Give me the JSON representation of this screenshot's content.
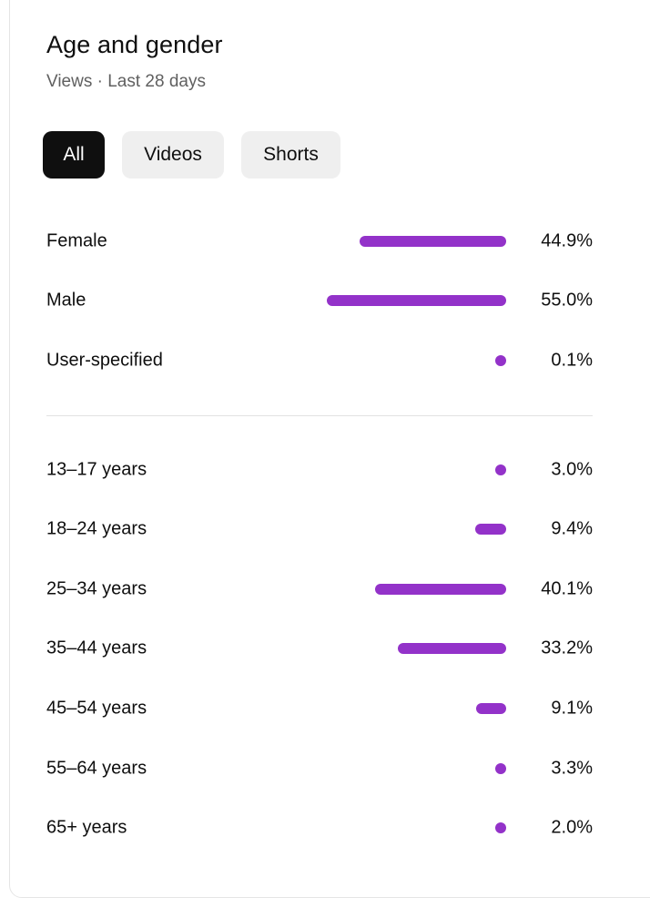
{
  "header": {
    "title": "Age and gender",
    "subtitle": "Views · Last 28 days"
  },
  "tabs": [
    {
      "label": "All",
      "active": true
    },
    {
      "label": "Videos",
      "active": false
    },
    {
      "label": "Shorts",
      "active": false
    }
  ],
  "accent_color": "#9332c9",
  "gender": [
    {
      "label": "Female",
      "value": "44.9%",
      "percent": 44.9
    },
    {
      "label": "Male",
      "value": "55.0%",
      "percent": 55.0
    },
    {
      "label": "User-specified",
      "value": "0.1%",
      "percent": 0.1
    }
  ],
  "age": [
    {
      "label": "13–17 years",
      "value": "3.0%",
      "percent": 3.0
    },
    {
      "label": "18–24 years",
      "value": "9.4%",
      "percent": 9.4
    },
    {
      "label": "25–34 years",
      "value": "40.1%",
      "percent": 40.1
    },
    {
      "label": "35–44 years",
      "value": "33.2%",
      "percent": 33.2
    },
    {
      "label": "45–54 years",
      "value": "9.1%",
      "percent": 9.1
    },
    {
      "label": "55–64 years",
      "value": "3.3%",
      "percent": 3.3
    },
    {
      "label": "65+ years",
      "value": "2.0%",
      "percent": 2.0
    }
  ]
}
